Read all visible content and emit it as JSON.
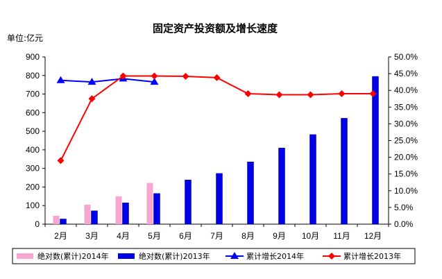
{
  "chart_data": {
    "type": "bar",
    "title": "固定资产投资额及增长速度",
    "unit_label": "单位:亿元",
    "categories": [
      "2月",
      "3月",
      "4月",
      "5月",
      "6月",
      "7月",
      "8月",
      "9月",
      "10月",
      "11月",
      "12月"
    ],
    "y_left": {
      "min": 0,
      "max": 900,
      "step": 100,
      "ticks": [
        "0",
        "100",
        "200",
        "300",
        "400",
        "500",
        "600",
        "700",
        "800",
        "900"
      ]
    },
    "y_right": {
      "min": 0,
      "max": 50,
      "step": 5,
      "ticks": [
        "0.0%",
        "5.0%",
        "10.0%",
        "15.0%",
        "20.0%",
        "25.0%",
        "30.0%",
        "35.0%",
        "40.0%",
        "45.0%",
        "50.0%"
      ]
    },
    "bar_series": [
      {
        "name": "绝对数(累计)2014年",
        "color": "#f7a6cf",
        "values": [
          45,
          105,
          150,
          222,
          null,
          null,
          null,
          null,
          null,
          null,
          null
        ]
      },
      {
        "name": "绝对数(累计)2013年",
        "color": "#0000e6",
        "values": [
          28,
          72,
          115,
          165,
          238,
          273,
          335,
          410,
          482,
          570,
          795
        ]
      }
    ],
    "line_series": [
      {
        "name": "累计增长2014年",
        "color": "#0000ff",
        "marker": "triangle",
        "values": [
          43.0,
          42.5,
          43.5,
          42.5,
          null,
          null,
          null,
          null,
          null,
          null,
          null
        ]
      },
      {
        "name": "累计增长2013年",
        "color": "#ff0000",
        "marker": "diamond",
        "values": [
          19.0,
          37.5,
          44.3,
          44.3,
          44.2,
          43.8,
          39.0,
          38.7,
          38.7,
          39.0,
          39.0
        ]
      }
    ],
    "grid": false,
    "legend_position": "bottom"
  }
}
